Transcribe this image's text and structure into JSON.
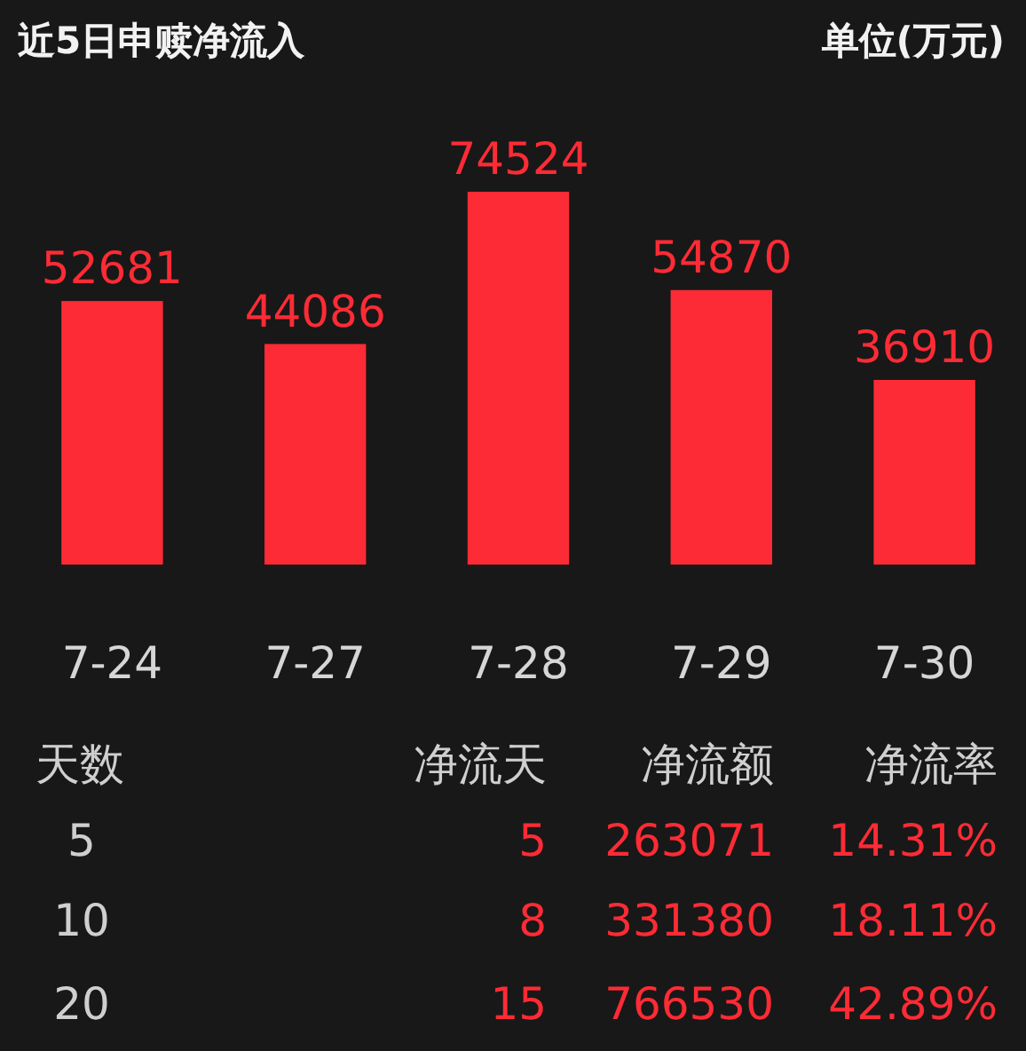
{
  "chart_data": [
    {
      "type": "bar",
      "title": "近5日申赎净流入",
      "subtitle": "单位(万元)",
      "categories": [
        "7-24",
        "7-27",
        "7-28",
        "7-29",
        "7-30"
      ],
      "values": [
        52681,
        44086,
        74524,
        54870,
        36910
      ],
      "color": "#fd2b35",
      "data_labels": true
    },
    {
      "type": "other",
      "annotations": [
        "天数",
        "净流天",
        "净流额",
        "净流率",
        "5",
        "5",
        "263071",
        "14.31%",
        "10",
        "8",
        "331380",
        "18.11%",
        "20",
        "15",
        "766530",
        "42.89%"
      ]
    }
  ]
}
